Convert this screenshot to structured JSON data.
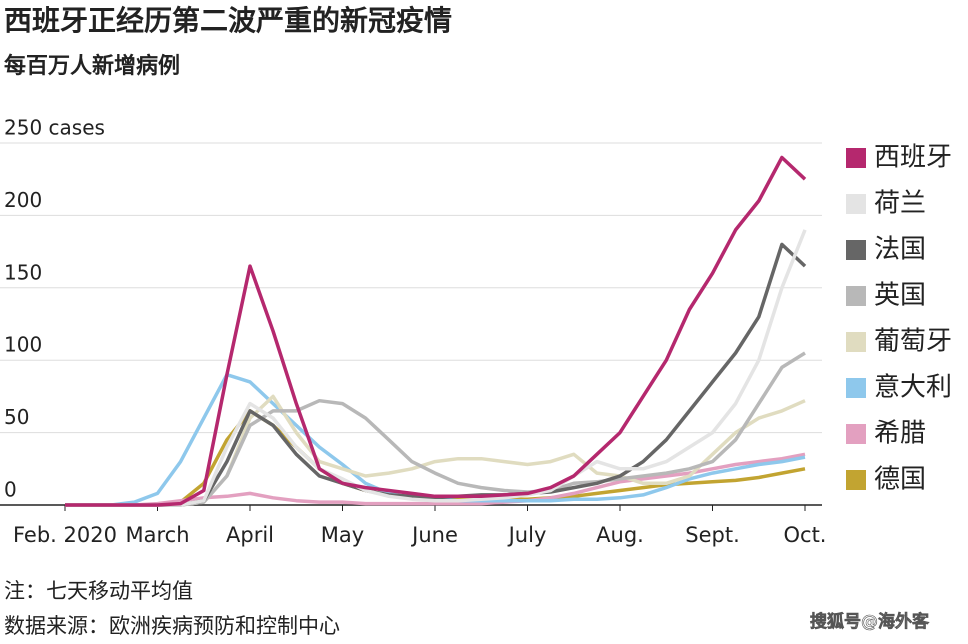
{
  "chart_data": {
    "type": "line",
    "title": "西班牙正经历第二波严重的新冠疫情",
    "subtitle": "每百万人新增病例",
    "note": "注：七天移动平均值",
    "source": "数据来源：欧洲疾病预防和控制中心",
    "watermark": "搜狐号@海外客",
    "categories": [
      "Feb. 2020",
      null,
      null,
      null,
      "March",
      null,
      null,
      null,
      "April",
      null,
      null,
      null,
      "May",
      null,
      null,
      null,
      "June",
      null,
      null,
      null,
      "July",
      null,
      null,
      null,
      "Aug.",
      null,
      null,
      null,
      "Sept.",
      null,
      null,
      null,
      "Oct."
    ],
    "ylim": [
      0,
      250
    ],
    "yticks": [
      0,
      50,
      100,
      150,
      200,
      {
        "value": 250,
        "label": "250 cases"
      }
    ],
    "grid": true,
    "legend": "right",
    "series": [
      {
        "name": "西班牙",
        "color": "#b5286e",
        "values": [
          0,
          0,
          0,
          0,
          0,
          1,
          10,
          90,
          165,
          120,
          70,
          25,
          15,
          12,
          10,
          8,
          6,
          6,
          6,
          7,
          8,
          12,
          20,
          35,
          50,
          75,
          100,
          135,
          160,
          190,
          210,
          240,
          225
        ]
      },
      {
        "name": "荷兰",
        "color": "#e4e4e4",
        "values": [
          0,
          0,
          0,
          0,
          0,
          0,
          3,
          40,
          70,
          60,
          40,
          25,
          18,
          10,
          6,
          4,
          3,
          3,
          4,
          5,
          7,
          10,
          20,
          30,
          25,
          25,
          30,
          40,
          50,
          70,
          100,
          150,
          190
        ]
      },
      {
        "name": "法国",
        "color": "#666666",
        "values": [
          0,
          0,
          0,
          0,
          0,
          0,
          3,
          30,
          65,
          55,
          35,
          20,
          15,
          10,
          7,
          6,
          5,
          6,
          7,
          7,
          8,
          9,
          12,
          15,
          20,
          30,
          45,
          65,
          85,
          105,
          130,
          180,
          165
        ]
      },
      {
        "name": "英国",
        "color": "#b8b8b8",
        "values": [
          0,
          0,
          0,
          0,
          0,
          0,
          2,
          20,
          55,
          65,
          65,
          72,
          70,
          60,
          45,
          30,
          22,
          15,
          12,
          10,
          9,
          10,
          15,
          16,
          18,
          20,
          22,
          25,
          30,
          45,
          70,
          95,
          105
        ]
      },
      {
        "name": "葡萄牙",
        "color": "#e0dcc0",
        "values": [
          0,
          0,
          0,
          0,
          0,
          0,
          2,
          20,
          60,
          75,
          50,
          30,
          25,
          20,
          22,
          25,
          30,
          32,
          32,
          30,
          28,
          30,
          35,
          22,
          20,
          15,
          15,
          20,
          35,
          50,
          60,
          65,
          72
        ]
      },
      {
        "name": "意大利",
        "color": "#8ec8ec",
        "values": [
          0,
          0,
          0,
          2,
          8,
          30,
          60,
          90,
          85,
          70,
          55,
          40,
          28,
          15,
          8,
          5,
          4,
          3,
          3,
          3,
          3,
          3,
          4,
          4,
          5,
          7,
          12,
          18,
          22,
          25,
          28,
          30,
          33
        ]
      },
      {
        "name": "希腊",
        "color": "#e3a0c0",
        "values": [
          0,
          0,
          0,
          0,
          1,
          3,
          5,
          6,
          8,
          5,
          3,
          2,
          2,
          1,
          1,
          1,
          1,
          1,
          1,
          2,
          3,
          5,
          8,
          12,
          16,
          18,
          20,
          22,
          25,
          28,
          30,
          32,
          35
        ]
      },
      {
        "name": "德国",
        "color": "#c2a431",
        "values": [
          0,
          0,
          0,
          0,
          0,
          2,
          15,
          45,
          65,
          55,
          40,
          25,
          15,
          10,
          7,
          5,
          5,
          4,
          4,
          4,
          4,
          5,
          6,
          8,
          10,
          12,
          14,
          15,
          16,
          17,
          19,
          22,
          25
        ]
      }
    ]
  }
}
